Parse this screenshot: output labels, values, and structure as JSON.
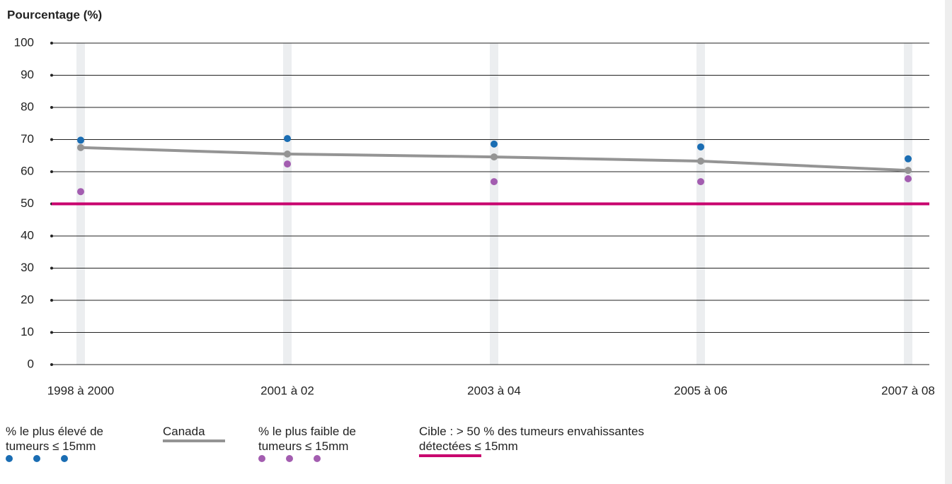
{
  "chart_data": {
    "type": "line",
    "y_axis_title": "Pourcentage (%)",
    "categories": [
      "1998 à 2000",
      "2001 à 02",
      "2003 à 04",
      "2005 à 06",
      "2007 à 08"
    ],
    "ylim": [
      0,
      100
    ],
    "yticks": [
      0,
      10,
      20,
      30,
      40,
      50,
      60,
      70,
      80,
      90,
      100
    ],
    "grid": true,
    "series": [
      {
        "name": "% le plus élevé de tumeurs ≤ 15mm",
        "color": "#1a6db3",
        "mark": "points",
        "values": [
          69.8,
          70.3,
          68.6,
          67.7,
          64.0
        ]
      },
      {
        "name": "Canada",
        "color": "#949494",
        "mark": "line",
        "values": [
          67.5,
          65.5,
          64.6,
          63.3,
          60.4
        ]
      },
      {
        "name": "% le plus faible de tumeurs ≤ 15mm",
        "color": "#a35db0",
        "mark": "points",
        "values": [
          53.8,
          62.4,
          56.9,
          56.9,
          57.8
        ]
      }
    ],
    "target": {
      "name": "Cible : > 50 % des tumeurs envahissantes détectées ≤ 15mm",
      "value": 50,
      "color": "#c8006e"
    }
  }
}
